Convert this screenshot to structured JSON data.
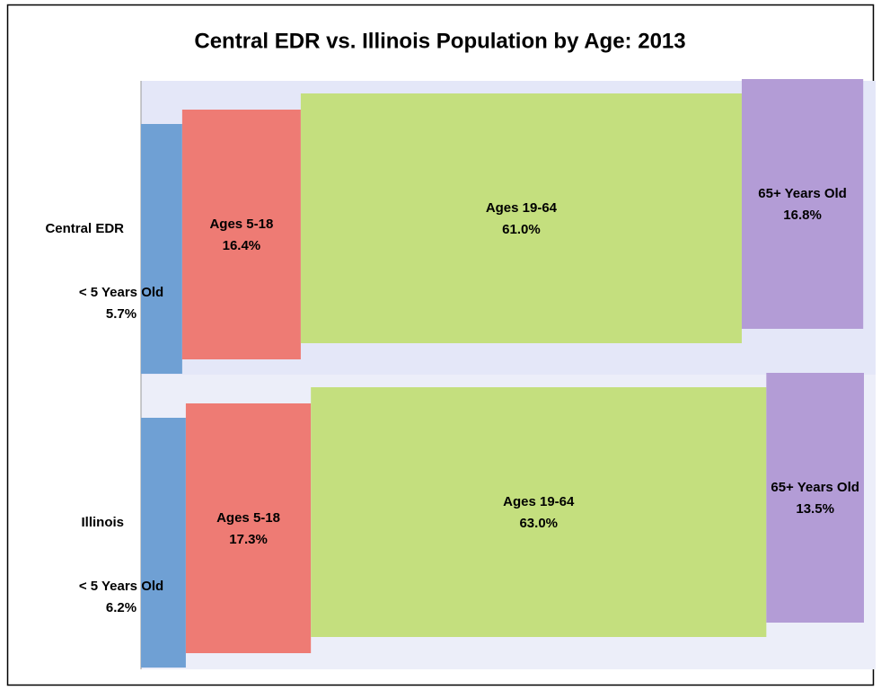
{
  "chart_data": {
    "type": "stacked-barh",
    "title": "Central EDR vs. Illinois Population by Age: 2013",
    "categories": [
      "Central EDR",
      "Illinois"
    ],
    "xlim": [
      0,
      100
    ],
    "series": [
      {
        "name": "< 5 Years Old",
        "color": "#6fa0d4",
        "values": [
          5.7,
          6.2
        ],
        "value_labels": [
          "5.7%",
          "6.2%"
        ]
      },
      {
        "name": "Ages 5-18",
        "color": "#ee7b74",
        "values": [
          16.4,
          17.3
        ],
        "value_labels": [
          "16.4%",
          "17.3%"
        ]
      },
      {
        "name": "Ages 19-64",
        "color": "#c4df7e",
        "values": [
          61.0,
          63.0
        ],
        "value_labels": [
          "61.0%",
          "63.0%"
        ]
      },
      {
        "name": "65+ Years Old",
        "color": "#b39cd6",
        "values": [
          16.8,
          13.5
        ],
        "value_labels": [
          "16.8%",
          "13.5%"
        ]
      }
    ]
  }
}
